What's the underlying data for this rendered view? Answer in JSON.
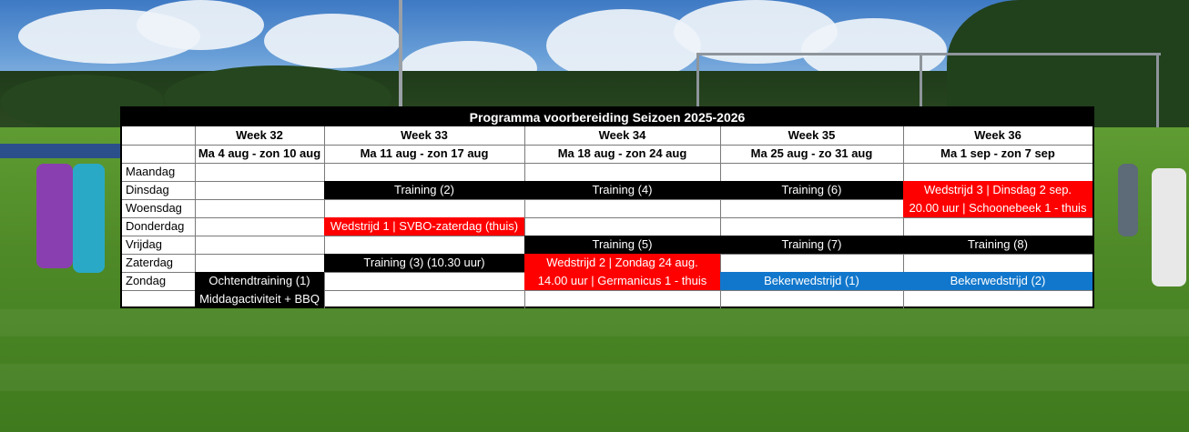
{
  "title": "Programma voorbereiding Seizoen 2025-2026",
  "weeks": [
    {
      "label": "Week 32",
      "range": "Ma 4 aug - zon 10 aug"
    },
    {
      "label": "Week 33",
      "range": "Ma 11 aug - zon 17 aug"
    },
    {
      "label": "Week 34",
      "range": "Ma 18 aug - zon 24 aug"
    },
    {
      "label": "Week 35",
      "range": "Ma 25 aug - zo 31 aug"
    },
    {
      "label": "Week 36",
      "range": "Ma 1 sep - zon 7 sep"
    }
  ],
  "days": [
    "Maandag",
    "Dinsdag",
    "Woensdag",
    "Donderdag",
    "Vrijdag",
    "Zaterdag",
    "Zondag"
  ],
  "events": {
    "w33_di": "Training (2)",
    "w34_di": "Training (4)",
    "w35_di": "Training (6)",
    "w36_di": "Wedstrijd 3 | Dinsdag 2 sep.",
    "w36_wo": "20.00 uur | Schoonebeek 1 - thuis",
    "w33_do": "Wedstrijd 1 | SVBO-zaterdag (thuis)",
    "w34_vr": "Training (5)",
    "w35_vr": "Training (7)",
    "w36_vr": "Training (8)",
    "w33_za": "Training (3) (10.30 uur)",
    "w34_za": "Wedstrijd 2 | Zondag 24 aug.",
    "w32_zo": "Ochtendtraining (1)",
    "w32_zo2": "Middagactiviteit + BBQ",
    "w34_zo": "14.00 uur | Germanicus 1 - thuis",
    "w35_zo": "Bekerwedstrijd (1)",
    "w36_zo": "Bekerwedstrijd (2)"
  },
  "colors": {
    "training": "#000000",
    "match": "#ff0000",
    "cup": "#1177cc"
  }
}
